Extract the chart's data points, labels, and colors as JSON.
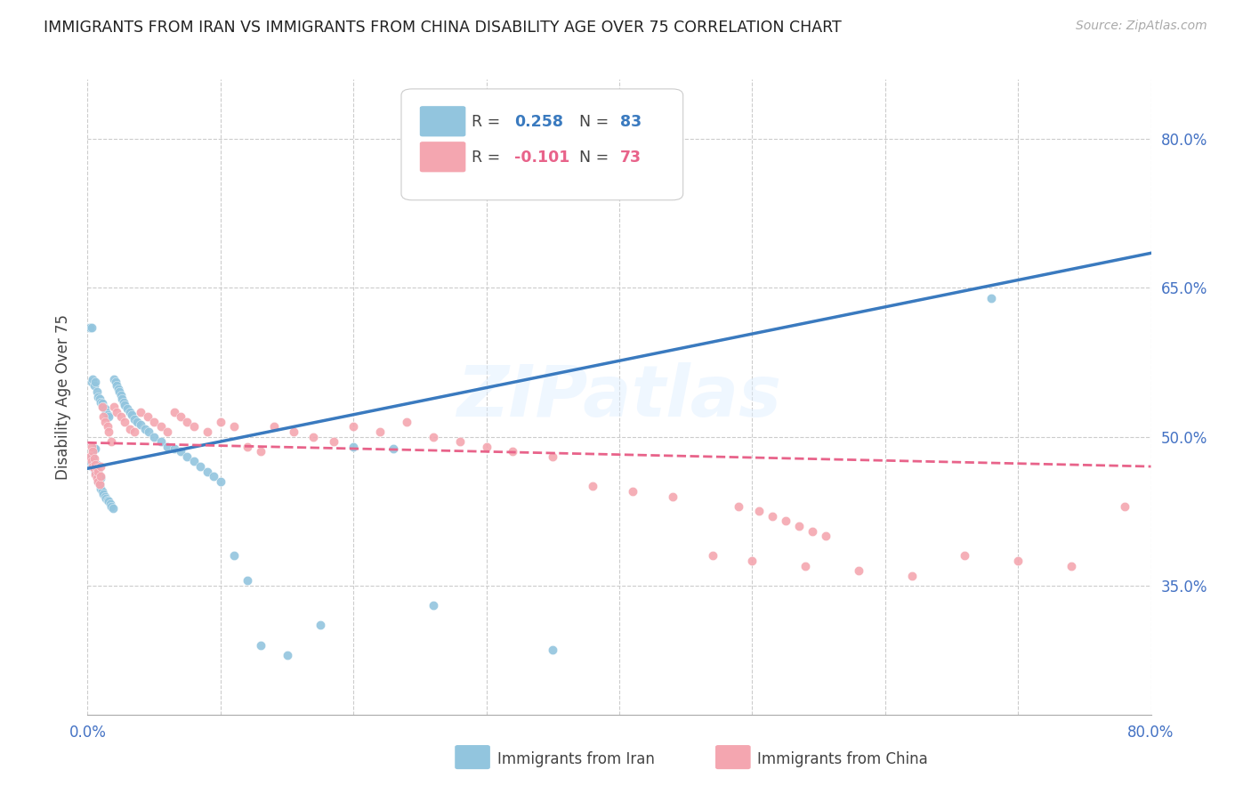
{
  "title": "IMMIGRANTS FROM IRAN VS IMMIGRANTS FROM CHINA DISABILITY AGE OVER 75 CORRELATION CHART",
  "source": "Source: ZipAtlas.com",
  "ylabel": "Disability Age Over 75",
  "x_min": 0.0,
  "x_max": 0.8,
  "y_min": 0.22,
  "y_max": 0.86,
  "y_ticks": [
    0.35,
    0.5,
    0.65,
    0.8
  ],
  "y_tick_labels": [
    "35.0%",
    "50.0%",
    "65.0%",
    "80.0%"
  ],
  "iran_R": 0.258,
  "iran_N": 83,
  "china_R": -0.101,
  "china_N": 73,
  "iran_color": "#92c5de",
  "china_color": "#f4a6b0",
  "iran_line_color": "#3a7abf",
  "china_line_color": "#e8638a",
  "iran_x": [
    0.002,
    0.002,
    0.003,
    0.003,
    0.003,
    0.003,
    0.004,
    0.004,
    0.004,
    0.005,
    0.005,
    0.005,
    0.005,
    0.006,
    0.006,
    0.006,
    0.006,
    0.007,
    0.007,
    0.007,
    0.007,
    0.008,
    0.008,
    0.008,
    0.009,
    0.009,
    0.009,
    0.01,
    0.01,
    0.01,
    0.011,
    0.011,
    0.012,
    0.012,
    0.013,
    0.013,
    0.014,
    0.014,
    0.015,
    0.015,
    0.016,
    0.016,
    0.017,
    0.018,
    0.019,
    0.02,
    0.021,
    0.022,
    0.023,
    0.024,
    0.025,
    0.026,
    0.027,
    0.028,
    0.03,
    0.032,
    0.033,
    0.035,
    0.037,
    0.04,
    0.043,
    0.046,
    0.05,
    0.055,
    0.06,
    0.065,
    0.07,
    0.075,
    0.08,
    0.085,
    0.09,
    0.095,
    0.1,
    0.11,
    0.12,
    0.13,
    0.15,
    0.175,
    0.2,
    0.23,
    0.26,
    0.35,
    0.68
  ],
  "iran_y": [
    0.475,
    0.61,
    0.47,
    0.48,
    0.555,
    0.61,
    0.475,
    0.48,
    0.558,
    0.468,
    0.472,
    0.488,
    0.552,
    0.465,
    0.47,
    0.488,
    0.555,
    0.46,
    0.466,
    0.472,
    0.545,
    0.455,
    0.466,
    0.54,
    0.452,
    0.46,
    0.538,
    0.448,
    0.458,
    0.535,
    0.445,
    0.534,
    0.442,
    0.53,
    0.44,
    0.528,
    0.438,
    0.525,
    0.436,
    0.522,
    0.435,
    0.52,
    0.432,
    0.43,
    0.428,
    0.558,
    0.555,
    0.552,
    0.548,
    0.545,
    0.542,
    0.538,
    0.535,
    0.532,
    0.528,
    0.525,
    0.522,
    0.518,
    0.515,
    0.512,
    0.508,
    0.505,
    0.5,
    0.495,
    0.49,
    0.488,
    0.485,
    0.48,
    0.475,
    0.47,
    0.465,
    0.46,
    0.455,
    0.38,
    0.355,
    0.29,
    0.28,
    0.31,
    0.49,
    0.488,
    0.33,
    0.285,
    0.64
  ],
  "china_x": [
    0.002,
    0.003,
    0.003,
    0.004,
    0.004,
    0.005,
    0.005,
    0.006,
    0.006,
    0.007,
    0.007,
    0.008,
    0.008,
    0.009,
    0.01,
    0.01,
    0.011,
    0.012,
    0.013,
    0.015,
    0.016,
    0.018,
    0.02,
    0.022,
    0.025,
    0.028,
    0.032,
    0.035,
    0.04,
    0.045,
    0.05,
    0.055,
    0.06,
    0.065,
    0.07,
    0.075,
    0.08,
    0.09,
    0.1,
    0.11,
    0.12,
    0.13,
    0.14,
    0.155,
    0.17,
    0.185,
    0.2,
    0.22,
    0.24,
    0.26,
    0.28,
    0.3,
    0.32,
    0.35,
    0.38,
    0.41,
    0.44,
    0.47,
    0.5,
    0.54,
    0.58,
    0.62,
    0.66,
    0.7,
    0.74,
    0.78,
    0.49,
    0.505,
    0.515,
    0.525,
    0.535,
    0.545,
    0.555
  ],
  "china_y": [
    0.48,
    0.475,
    0.49,
    0.485,
    0.47,
    0.468,
    0.478,
    0.462,
    0.472,
    0.458,
    0.468,
    0.455,
    0.465,
    0.452,
    0.46,
    0.47,
    0.53,
    0.52,
    0.515,
    0.51,
    0.505,
    0.495,
    0.53,
    0.525,
    0.52,
    0.515,
    0.508,
    0.505,
    0.525,
    0.52,
    0.515,
    0.51,
    0.505,
    0.525,
    0.52,
    0.515,
    0.51,
    0.505,
    0.515,
    0.51,
    0.49,
    0.485,
    0.51,
    0.505,
    0.5,
    0.495,
    0.51,
    0.505,
    0.515,
    0.5,
    0.495,
    0.49,
    0.485,
    0.48,
    0.45,
    0.445,
    0.44,
    0.38,
    0.375,
    0.37,
    0.365,
    0.36,
    0.38,
    0.375,
    0.37,
    0.43,
    0.43,
    0.425,
    0.42,
    0.415,
    0.41,
    0.405,
    0.4
  ],
  "iran_line_x0": 0.0,
  "iran_line_x1": 0.8,
  "iran_line_y0": 0.468,
  "iran_line_y1": 0.685,
  "china_line_x0": 0.0,
  "china_line_x1": 0.8,
  "china_line_y0": 0.494,
  "china_line_y1": 0.47
}
